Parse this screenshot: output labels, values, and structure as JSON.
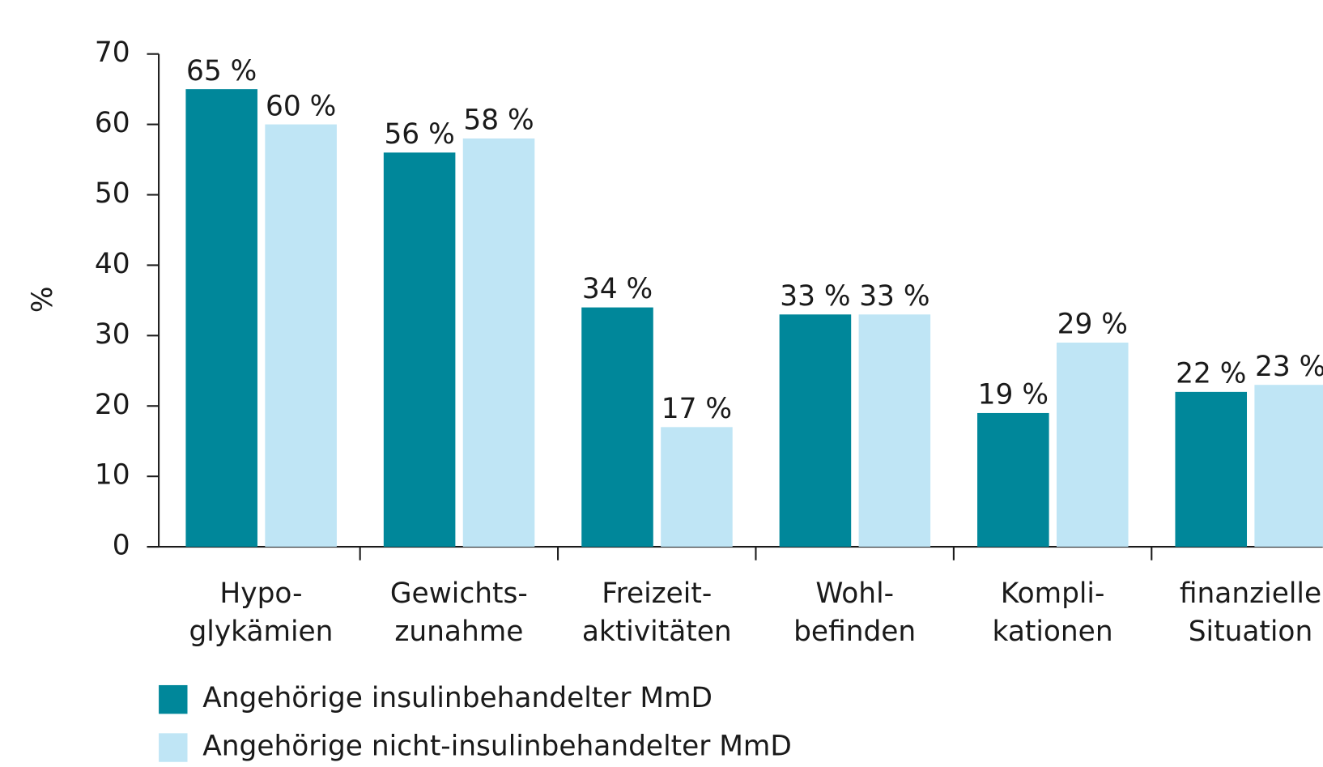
{
  "chart_data": {
    "type": "bar",
    "y_label": "%",
    "categories": [
      [
        "Hypo-",
        "glykämien"
      ],
      [
        "Gewichts-",
        "zunahme"
      ],
      [
        "Freizeit-",
        "aktivitäten"
      ],
      [
        "Wohl-",
        "befinden"
      ],
      [
        "Kompli-",
        "kationen"
      ],
      [
        "finanzielle",
        "Situation"
      ]
    ],
    "series": [
      {
        "name": "Angehörige insulinbehandelter MmD",
        "color": "#00879a",
        "values": [
          65,
          56,
          34,
          33,
          19,
          22
        ],
        "value_labels": [
          "65 %",
          "56 %",
          "34 %",
          "33 %",
          "19 %",
          "22 %"
        ]
      },
      {
        "name": "Angehörige nicht-insulinbehandelter MmD",
        "color": "#bfe5f5",
        "values": [
          60,
          58,
          17,
          33,
          29,
          23
        ],
        "value_labels": [
          "60 %",
          "58 %",
          "17 %",
          "33 %",
          "29 %",
          "23 %"
        ]
      }
    ],
    "ylim": [
      0,
      70
    ],
    "yticks": [
      0,
      10,
      20,
      30,
      40,
      50,
      60,
      70
    ]
  }
}
